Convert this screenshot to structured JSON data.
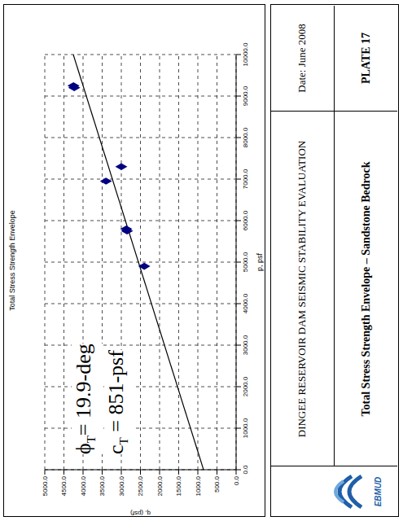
{
  "chart_data": {
    "type": "scatter",
    "title": "Total Stress Strength Envelope",
    "x_label": "p, psf",
    "y_label": "q, (psf)",
    "x": [
      9250,
      9200,
      6950,
      7300,
      5800,
      5750,
      4900
    ],
    "values": [
      4250,
      4230,
      3400,
      3000,
      2870,
      2850,
      2400
    ],
    "color": "#000080",
    "marker": "diamond",
    "envelope": {
      "x": [
        0,
        10000
      ],
      "values": [
        851,
        4255
      ],
      "color": "#000000",
      "line_style": "solid"
    },
    "xlim": [
      0,
      10000
    ],
    "xticks": [
      {
        "value": 0,
        "label": "0.0"
      },
      {
        "value": 1000,
        "label": "1000.0"
      },
      {
        "value": 2000,
        "label": "2000.0"
      },
      {
        "value": 3000,
        "label": "3000.0"
      },
      {
        "value": 4000,
        "label": "4000.0"
      },
      {
        "value": 5000,
        "label": "5000.0"
      },
      {
        "value": 6000,
        "label": "6000.0"
      },
      {
        "value": 7000,
        "label": "7000.0"
      },
      {
        "value": 8000,
        "label": "8000.0"
      },
      {
        "value": 9000,
        "label": "9000.0"
      },
      {
        "value": 10000,
        "label": "10000.0"
      }
    ],
    "ylim": [
      0,
      5000
    ],
    "yticks": [
      {
        "value": 0,
        "label": "0.0"
      },
      {
        "value": 500,
        "label": "500.0"
      },
      {
        "value": 1000,
        "label": "1000.0"
      },
      {
        "value": 1500,
        "label": "1500.0"
      },
      {
        "value": 2000,
        "label": "2000.0"
      },
      {
        "value": 2500,
        "label": "2500.0"
      },
      {
        "value": 3000,
        "label": "3000.0"
      },
      {
        "value": 3500,
        "label": "3500.0"
      },
      {
        "value": 4000,
        "label": "4000.0"
      },
      {
        "value": 4500,
        "label": "4500.0"
      },
      {
        "value": 5000,
        "label": "5000.0"
      }
    ],
    "grid": true,
    "annotations": [
      {
        "symbol": "ϕ",
        "subscript": "T",
        "text": "= 19.9-deg"
      },
      {
        "symbol": "c",
        "subscript": "T",
        "text": " = 851-psf"
      }
    ]
  },
  "title_block": {
    "logo": "EBMUD",
    "project": "DINGEE RESERVOIR DAM SEISMIC STABILITY EVALUATION",
    "plate_title": "Total Stress Strength Envelope – Sandstone Bedrock",
    "date": "Date: June 2008",
    "plate": "PLATE 17"
  }
}
